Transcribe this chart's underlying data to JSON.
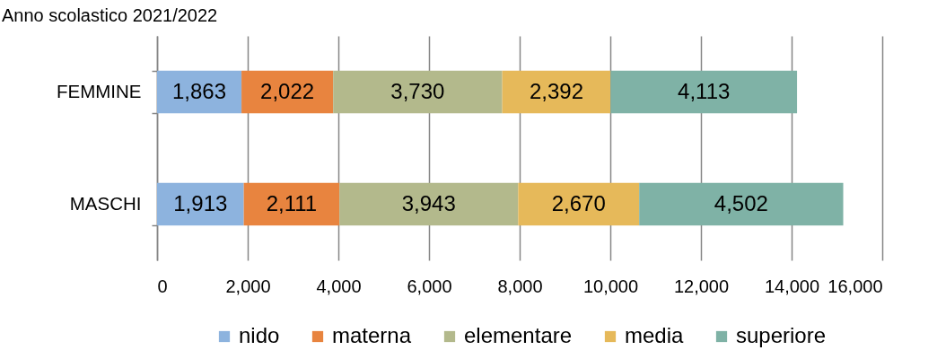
{
  "chart_data": {
    "type": "bar",
    "orientation": "horizontal",
    "stacked": true,
    "title": "Anno scolastico 2021/2022",
    "categories": [
      "FEMMINE",
      "MASCHI"
    ],
    "series": [
      {
        "name": "nido",
        "color": "#8db3de",
        "values": [
          1863,
          1913
        ],
        "value_labels": [
          "1,863",
          "1,913"
        ]
      },
      {
        "name": "materna",
        "color": "#e8843f",
        "values": [
          2022,
          2111
        ],
        "value_labels": [
          "2,022",
          "2,111"
        ]
      },
      {
        "name": "elementare",
        "color": "#b3b98c",
        "values": [
          3730,
          3943
        ],
        "value_labels": [
          "3,730",
          "3,943"
        ]
      },
      {
        "name": "media",
        "color": "#e6b95a",
        "values": [
          2392,
          2670
        ],
        "value_labels": [
          "2,392",
          "2,670"
        ]
      },
      {
        "name": "superiore",
        "color": "#7fb2a6",
        "values": [
          4113,
          4502
        ],
        "value_labels": [
          "4,113",
          "4,502"
        ]
      }
    ],
    "xlim": [
      0,
      16000
    ],
    "xticks": [
      0,
      {
        "value": 2000,
        "label": "2,000"
      },
      {
        "value": 4000,
        "label": "4,000"
      },
      {
        "value": 6000,
        "label": "6,000"
      },
      {
        "value": 8000,
        "label": "8,000"
      },
      {
        "value": 10000,
        "label": "10,000"
      },
      {
        "value": 12000,
        "label": "12,000"
      },
      {
        "value": 14000,
        "label": "14,000"
      },
      {
        "value": 16000,
        "label": "16,000"
      }
    ],
    "grid": "x",
    "legend": "bottom"
  }
}
